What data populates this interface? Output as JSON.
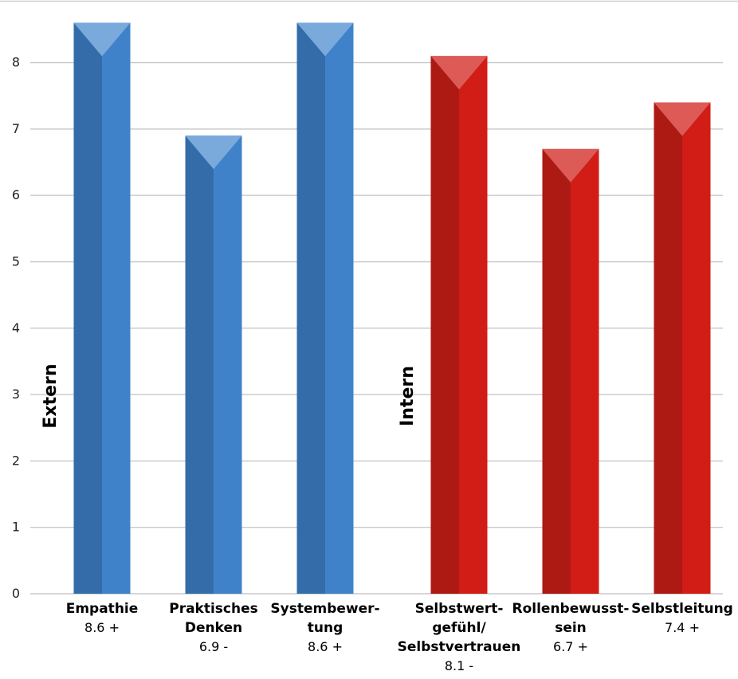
{
  "chart_data": {
    "type": "bar",
    "ylim": [
      0,
      8.6
    ],
    "yticks": [
      0,
      1,
      2,
      3,
      4,
      5,
      6,
      7,
      8
    ],
    "grid": true,
    "groups": [
      {
        "label": "Extern",
        "color": "#3f82ca",
        "color_dark": "#336ca9",
        "color_top": "#7aa9dc"
      },
      {
        "label": "Intern",
        "color": "#d11d16",
        "color_dark": "#ad1913",
        "color_top": "#dd5b57"
      }
    ],
    "categories": [
      {
        "lines": [
          "Empathie"
        ],
        "value_label": "8.6 +",
        "value": 8.6,
        "group": 0
      },
      {
        "lines": [
          "Praktisches",
          "Denken"
        ],
        "value_label": "6.9 -",
        "value": 6.9,
        "group": 0
      },
      {
        "lines": [
          "Systembewer-",
          "tung"
        ],
        "value_label": "8.6 +",
        "value": 8.6,
        "group": 0
      },
      {
        "lines": [
          "Selbstwert-",
          "gefühl/",
          "Selbstvertrauen"
        ],
        "value_label": "8.1 -",
        "value": 8.1,
        "group": 1
      },
      {
        "lines": [
          "Rollenbewusst-",
          "sein"
        ],
        "value_label": "6.7 +",
        "value": 6.7,
        "group": 1
      },
      {
        "lines": [
          "Selbstleitung"
        ],
        "value_label": "7.4 +",
        "value": 7.4,
        "group": 1
      }
    ]
  }
}
